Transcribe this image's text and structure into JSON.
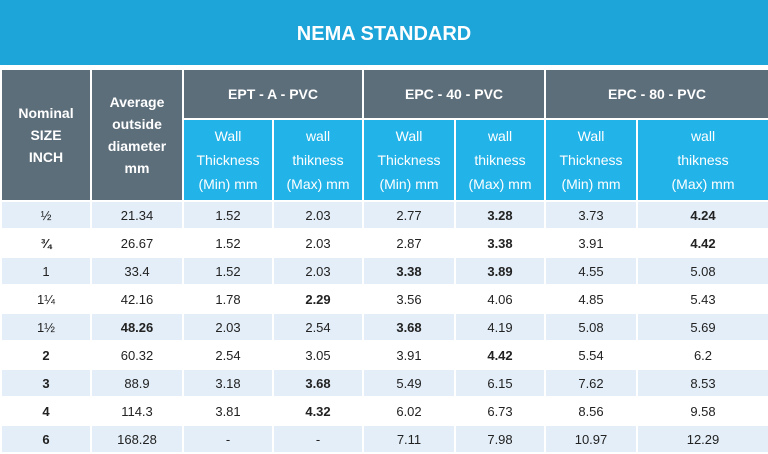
{
  "title": "NEMA STANDARD",
  "header": {
    "nominal": [
      "Nominal",
      "SIZE",
      "INCH"
    ],
    "average": [
      "Average",
      "outside",
      "diameter",
      "mm"
    ],
    "groups": [
      "EPT - A - PVC",
      "EPC - 40 - PVC",
      "EPC - 80 - PVC"
    ],
    "sub_min": [
      "Wall",
      "Thickness",
      "(Min) mm"
    ],
    "sub_max": [
      "wall",
      "thikness",
      "(Max) mm"
    ]
  },
  "rows": [
    {
      "size": "½",
      "od": "21.34",
      "a_min": "1.52",
      "a_max": "2.03",
      "b_min": "2.77",
      "b_max": "3.28",
      "c_min": "3.73",
      "c_max": "4.24",
      "bold": [
        "b_max",
        "c_max"
      ]
    },
    {
      "size": "¾",
      "od": "26.67",
      "a_min": "1.52",
      "a_max": "2.03",
      "b_min": "2.87",
      "b_max": "3.38",
      "c_min": "3.91",
      "c_max": "4.42",
      "bold": [
        "size",
        "b_max",
        "c_max"
      ]
    },
    {
      "size": "1",
      "od": "33.4",
      "a_min": "1.52",
      "a_max": "2.03",
      "b_min": "3.38",
      "b_max": "3.89",
      "c_min": "4.55",
      "c_max": "5.08",
      "bold": [
        "b_min",
        "b_max"
      ]
    },
    {
      "size": "1¼",
      "od": "42.16",
      "a_min": "1.78",
      "a_max": "2.29",
      "b_min": "3.56",
      "b_max": "4.06",
      "c_min": "4.85",
      "c_max": "5.43",
      "bold": [
        "a_max"
      ]
    },
    {
      "size": "1½",
      "od": "48.26",
      "a_min": "2.03",
      "a_max": "2.54",
      "b_min": "3.68",
      "b_max": "4.19",
      "c_min": "5.08",
      "c_max": "5.69",
      "bold": [
        "od",
        "b_min"
      ]
    },
    {
      "size": "2",
      "od": "60.32",
      "a_min": "2.54",
      "a_max": "3.05",
      "b_min": "3.91",
      "b_max": "4.42",
      "c_min": "5.54",
      "c_max": "6.2",
      "bold": [
        "size",
        "b_max"
      ]
    },
    {
      "size": "3",
      "od": "88.9",
      "a_min": "3.18",
      "a_max": "3.68",
      "b_min": "5.49",
      "b_max": "6.15",
      "c_min": "7.62",
      "c_max": "8.53",
      "bold": [
        "size",
        "a_max"
      ]
    },
    {
      "size": "4",
      "od": "114.3",
      "a_min": "3.81",
      "a_max": "4.32",
      "b_min": "6.02",
      "b_max": "6.73",
      "c_min": "8.56",
      "c_max": "9.58",
      "bold": [
        "size",
        "a_max"
      ]
    },
    {
      "size": "6",
      "od": "168.28",
      "a_min": "-",
      "a_max": "-",
      "b_min": "7.11",
      "b_max": "7.98",
      "c_min": "10.97",
      "c_max": "12.29",
      "bold": [
        "size"
      ]
    }
  ]
}
